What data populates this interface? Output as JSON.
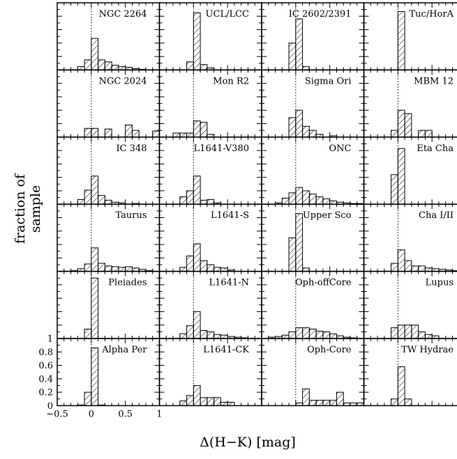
{
  "chart_data": {
    "type": "bar",
    "layout": "6x4 grid of histogram panels",
    "xlabel": "Δ(H−K) [mag]",
    "ylabel": "fraction of sample",
    "xlim": [
      -0.5,
      1.0
    ],
    "ylim": [
      0,
      1.0
    ],
    "x_ticks": [
      "−0.5",
      "0",
      "0.5",
      "1"
    ],
    "y_ticks": [
      "0",
      "0.2",
      "0.4",
      "0.6",
      "0.8",
      "1"
    ],
    "bin_start": -0.5,
    "bin_width": 0.1,
    "reference_line_x": 0,
    "panels": [
      {
        "name": "NGC 2264",
        "values": [
          0,
          0,
          0,
          0.05,
          0.15,
          0.47,
          0.15,
          0.12,
          0.07,
          0.05,
          0.04,
          0.02,
          0.01,
          0,
          0
        ]
      },
      {
        "name": "UCL/LCC",
        "values": [
          0,
          0,
          0,
          0,
          0.12,
          0.85,
          0.08,
          0.03,
          0,
          0,
          0,
          0,
          0,
          0,
          0
        ]
      },
      {
        "name": "IC 2602/2391",
        "values": [
          0,
          0,
          0,
          0,
          0.4,
          0.76,
          0.05,
          0,
          0,
          0,
          0,
          0,
          0,
          0,
          0
        ]
      },
      {
        "name": "Tuc/HorA",
        "values": [
          0,
          0,
          0,
          0,
          0,
          0.87,
          0,
          0,
          0,
          0,
          0,
          0,
          0,
          0,
          0
        ]
      },
      {
        "name": "NGC 2024",
        "values": [
          0,
          0,
          0,
          0,
          0.13,
          0.13,
          0,
          0.12,
          0,
          0,
          0.18,
          0.1,
          0,
          0,
          0.09
        ]
      },
      {
        "name": "Mon R2",
        "values": [
          0,
          0,
          0.06,
          0.06,
          0.06,
          0.24,
          0.22,
          0.04,
          0,
          0,
          0,
          0,
          0,
          0,
          0
        ]
      },
      {
        "name": "Sigma Ori",
        "values": [
          0,
          0,
          0,
          0,
          0.29,
          0.4,
          0.16,
          0.1,
          0.04,
          0,
          0.02,
          0,
          0,
          0,
          0
        ]
      },
      {
        "name": "MBM 12",
        "values": [
          0,
          0,
          0,
          0,
          0.1,
          0.4,
          0.35,
          0,
          0.1,
          0.1,
          0,
          0,
          0,
          0,
          0
        ]
      },
      {
        "name": "IC 348",
        "values": [
          0,
          0,
          0,
          0.07,
          0.21,
          0.42,
          0.13,
          0.06,
          0.03,
          0.02,
          0,
          0.01,
          0,
          0,
          0
        ]
      },
      {
        "name": "L1641-V380",
        "values": [
          0,
          0,
          0,
          0.11,
          0.2,
          0.42,
          0.06,
          0.07,
          0.02,
          0,
          0,
          0,
          0,
          0,
          0
        ]
      },
      {
        "name": "ONC",
        "values": [
          0,
          0,
          0.02,
          0.09,
          0.17,
          0.25,
          0.2,
          0.15,
          0.11,
          0.08,
          0.05,
          0.03,
          0.02,
          0.01,
          0.01
        ]
      },
      {
        "name": "Eta Cha",
        "values": [
          0,
          0,
          0,
          0,
          0.44,
          0.83,
          0,
          0,
          0,
          0,
          0,
          0,
          0,
          0,
          0
        ]
      },
      {
        "name": "Taurus",
        "values": [
          0,
          0,
          0.01,
          0.04,
          0.11,
          0.35,
          0.12,
          0.08,
          0.07,
          0.06,
          0.07,
          0.05,
          0.03,
          0.01,
          0
        ]
      },
      {
        "name": "L1641-S",
        "values": [
          0,
          0,
          0,
          0.06,
          0.23,
          0.41,
          0.16,
          0.1,
          0.06,
          0.05,
          0.02,
          0,
          0,
          0,
          0
        ]
      },
      {
        "name": "Upper Sco",
        "values": [
          0,
          0,
          0,
          0,
          0.5,
          0.86,
          0.05,
          0,
          0,
          0,
          0,
          0,
          0,
          0,
          0
        ]
      },
      {
        "name": "Cha I/II",
        "values": [
          0,
          0,
          0,
          0,
          0.12,
          0.32,
          0.16,
          0.08,
          0.08,
          0.05,
          0.04,
          0.03,
          0.02,
          0.01,
          0
        ]
      },
      {
        "name": "Pleiades",
        "values": [
          0,
          0,
          0,
          0,
          0.14,
          0.9,
          0,
          0,
          0,
          0,
          0,
          0,
          0,
          0,
          0
        ]
      },
      {
        "name": "L1641-N",
        "values": [
          0,
          0,
          0,
          0.07,
          0.19,
          0.4,
          0.12,
          0.1,
          0.06,
          0.05,
          0.03,
          0.02,
          0.01,
          0,
          0
        ]
      },
      {
        "name": "Oph-offCore",
        "values": [
          0,
          0.02,
          0.03,
          0.05,
          0.1,
          0.16,
          0.16,
          0.14,
          0.11,
          0.1,
          0.07,
          0.04,
          0.02,
          0.01,
          0
        ]
      },
      {
        "name": "Lupus",
        "values": [
          0,
          0,
          0,
          0,
          0.16,
          0.2,
          0.2,
          0.2,
          0.1,
          0.06,
          0.04,
          0,
          0,
          0,
          0
        ]
      },
      {
        "name": "Alpha Per",
        "values": [
          0,
          0,
          0,
          0.01,
          0.2,
          0.86,
          0.01,
          0,
          0,
          0,
          0,
          0,
          0,
          0,
          0
        ]
      },
      {
        "name": "L1641-CK",
        "values": [
          0,
          0,
          0,
          0.07,
          0.15,
          0.3,
          0.12,
          0.12,
          0.12,
          0.05,
          0.05,
          0,
          0,
          0,
          0
        ]
      },
      {
        "name": "Oph-Core",
        "values": [
          0,
          0,
          0,
          0,
          0,
          0.04,
          0.25,
          0.08,
          0.08,
          0.08,
          0.08,
          0.2,
          0.04,
          0.04,
          0.04
        ]
      },
      {
        "name": "TW Hydrae",
        "values": [
          0,
          0,
          0,
          0,
          0.1,
          0.58,
          0.1,
          0,
          0,
          0,
          0,
          0,
          0,
          0,
          0
        ]
      }
    ]
  }
}
